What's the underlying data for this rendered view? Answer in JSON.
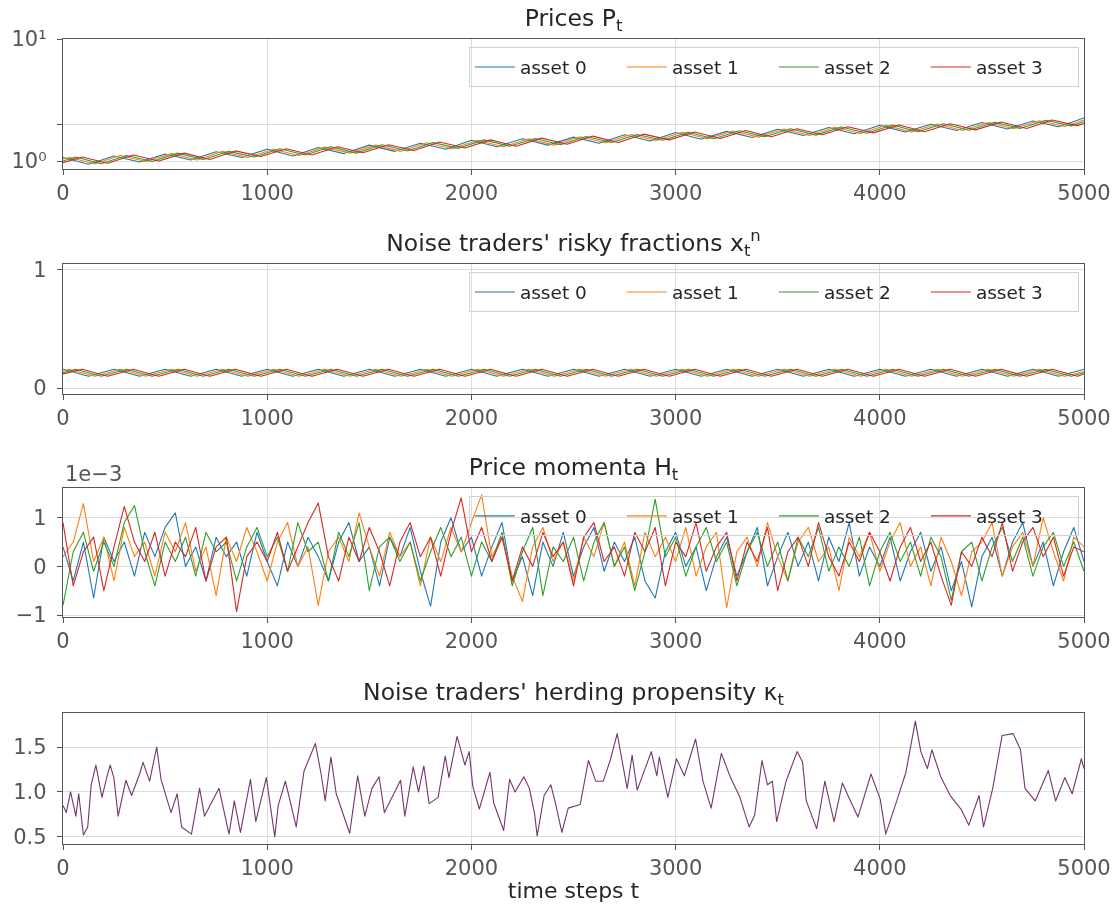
{
  "chart_data": [
    {
      "type": "line",
      "title": "Prices P$_{t}$",
      "x": [
        0,
        125,
        250,
        375,
        500,
        625,
        750,
        875,
        1000,
        1125,
        1250,
        1375,
        1500,
        1625,
        1750,
        1875,
        2000,
        2125,
        2250,
        2375,
        2500,
        2625,
        2750,
        2875,
        3000,
        3125,
        3250,
        3375,
        3500,
        3625,
        3750,
        3875,
        4000,
        4125,
        4250,
        4375,
        4500,
        4625,
        4750,
        4875,
        5000
      ],
      "xlim": [
        0,
        5000
      ],
      "xticks": [
        0,
        1000,
        2000,
        3000,
        4000,
        5000
      ],
      "ylim": [
        0.86,
        10
      ],
      "yticks": [
        {
          "value": 1,
          "label": "10⁰"
        },
        {
          "value": 2,
          "label": null
        },
        {
          "value": 10,
          "label": "10¹"
        }
      ],
      "log": "y",
      "grid": true,
      "legend": "top right",
      "series": [
        {
          "name": "asset 0",
          "color": "#1f77b4",
          "values": [
            1.07,
            0.94,
            1.1,
            0.98,
            1.14,
            1.02,
            1.19,
            1.07,
            1.25,
            1.1,
            1.29,
            1.15,
            1.35,
            1.2,
            1.4,
            1.25,
            1.48,
            1.31,
            1.52,
            1.35,
            1.57,
            1.4,
            1.64,
            1.46,
            1.71,
            1.51,
            1.75,
            1.56,
            1.82,
            1.62,
            1.88,
            1.67,
            1.96,
            1.73,
            2.0,
            1.78,
            2.07,
            1.83,
            2.13,
            1.91,
            2.25
          ]
        },
        {
          "name": "asset 1",
          "color": "#ff7f0e",
          "x": [
            0,
            31,
            156,
            281,
            406,
            531,
            656,
            781,
            906,
            1031,
            1156,
            1281,
            1406,
            1531,
            1656,
            1781,
            1906,
            2031,
            2156,
            2281,
            2406,
            2531,
            2656,
            2781,
            2906,
            3031,
            3156,
            3281,
            3406,
            3531,
            3656,
            3781,
            3906,
            4031,
            4156,
            4281,
            4406,
            4531,
            4656,
            4781,
            4906,
            5000
          ],
          "values": [
            1.04,
            1.07,
            0.95,
            1.11,
            0.99,
            1.15,
            1.02,
            1.2,
            1.07,
            1.25,
            1.11,
            1.3,
            1.16,
            1.35,
            1.2,
            1.41,
            1.26,
            1.48,
            1.31,
            1.52,
            1.35,
            1.58,
            1.41,
            1.65,
            1.47,
            1.72,
            1.52,
            1.76,
            1.57,
            1.83,
            1.62,
            1.89,
            1.68,
            1.96,
            1.73,
            2.01,
            1.78,
            2.07,
            1.84,
            2.14,
            1.92,
            2.17
          ]
        },
        {
          "name": "asset 2",
          "color": "#2ca02c",
          "x": [
            0,
            62,
            187,
            312,
            437,
            562,
            687,
            812,
            937,
            1062,
            1187,
            1312,
            1437,
            1562,
            1687,
            1812,
            1937,
            2062,
            2187,
            2312,
            2437,
            2562,
            2687,
            2812,
            2937,
            3062,
            3187,
            3312,
            3437,
            3562,
            3687,
            3812,
            3937,
            4062,
            4187,
            4312,
            4437,
            4562,
            4687,
            4812,
            4937,
            5000
          ],
          "values": [
            1.0,
            1.08,
            0.95,
            1.11,
            0.99,
            1.16,
            1.03,
            1.2,
            1.08,
            1.26,
            1.12,
            1.31,
            1.16,
            1.36,
            1.21,
            1.42,
            1.27,
            1.49,
            1.32,
            1.53,
            1.36,
            1.59,
            1.42,
            1.65,
            1.48,
            1.72,
            1.52,
            1.77,
            1.58,
            1.84,
            1.63,
            1.9,
            1.69,
            1.97,
            1.74,
            2.02,
            1.79,
            2.08,
            1.85,
            2.16,
            1.94,
            2.1
          ]
        },
        {
          "name": "asset 3",
          "color": "#d62728",
          "x": [
            0,
            94,
            219,
            344,
            469,
            594,
            719,
            844,
            969,
            1094,
            1219,
            1344,
            1469,
            1594,
            1719,
            1844,
            1969,
            2094,
            2219,
            2344,
            2469,
            2594,
            2719,
            2844,
            2969,
            3094,
            3219,
            3344,
            3469,
            3594,
            3719,
            3844,
            3969,
            4094,
            4219,
            4344,
            4469,
            4594,
            4719,
            4844,
            4969,
            5000
          ],
          "values": [
            0.97,
            1.08,
            0.96,
            1.12,
            1.0,
            1.16,
            1.03,
            1.21,
            1.09,
            1.26,
            1.12,
            1.31,
            1.17,
            1.36,
            1.22,
            1.43,
            1.28,
            1.49,
            1.32,
            1.54,
            1.37,
            1.6,
            1.42,
            1.66,
            1.49,
            1.73,
            1.53,
            1.78,
            1.58,
            1.84,
            1.64,
            1.91,
            1.7,
            1.97,
            1.74,
            2.02,
            1.8,
            2.09,
            1.85,
            2.17,
            1.95,
            2.03
          ]
        }
      ]
    },
    {
      "type": "line",
      "title": "Noise traders' risky fractions x$_{t}$$^{n}$",
      "x": [
        0,
        125,
        250,
        375,
        500,
        625,
        750,
        875,
        1000,
        1125,
        1250,
        1375,
        1500,
        1625,
        1750,
        1875,
        2000,
        2125,
        2250,
        2375,
        2500,
        2625,
        2750,
        2875,
        3000,
        3125,
        3250,
        3375,
        3500,
        3625,
        3750,
        3875,
        4000,
        4125,
        4250,
        4375,
        4500,
        4625,
        4750,
        4875,
        5000
      ],
      "xlim": [
        0,
        5000
      ],
      "xticks": [
        0,
        1000,
        2000,
        3000,
        4000,
        5000
      ],
      "ylim": [
        -0.05,
        1.05
      ],
      "yticks": [
        0,
        1
      ],
      "grid": true,
      "legend": "top right",
      "series": [
        {
          "name": "asset 0",
          "color": "#1f77b4",
          "values": [
            0.16,
            0.1,
            0.16,
            0.1,
            0.16,
            0.1,
            0.16,
            0.1,
            0.16,
            0.1,
            0.16,
            0.1,
            0.16,
            0.1,
            0.16,
            0.1,
            0.16,
            0.1,
            0.16,
            0.1,
            0.16,
            0.1,
            0.16,
            0.1,
            0.16,
            0.1,
            0.16,
            0.1,
            0.16,
            0.1,
            0.16,
            0.1,
            0.16,
            0.1,
            0.16,
            0.1,
            0.16,
            0.1,
            0.16,
            0.1,
            0.16
          ]
        },
        {
          "name": "asset 1",
          "color": "#ff7f0e",
          "x": [
            0,
            31,
            156,
            281,
            406,
            531,
            656,
            781,
            906,
            1031,
            1156,
            1281,
            1406,
            1531,
            1656,
            1781,
            1906,
            2031,
            2156,
            2281,
            2406,
            2531,
            2656,
            2781,
            2906,
            3031,
            3156,
            3281,
            3406,
            3531,
            3656,
            3781,
            3906,
            4031,
            4156,
            4281,
            4406,
            4531,
            4656,
            4781,
            4906,
            5000
          ],
          "values": [
            0.14,
            0.16,
            0.1,
            0.16,
            0.1,
            0.16,
            0.1,
            0.16,
            0.1,
            0.16,
            0.1,
            0.16,
            0.1,
            0.16,
            0.1,
            0.16,
            0.1,
            0.16,
            0.1,
            0.16,
            0.1,
            0.16,
            0.1,
            0.16,
            0.1,
            0.16,
            0.1,
            0.16,
            0.1,
            0.16,
            0.1,
            0.16,
            0.1,
            0.16,
            0.1,
            0.16,
            0.1,
            0.16,
            0.1,
            0.16,
            0.1,
            0.14
          ]
        },
        {
          "name": "asset 2",
          "color": "#2ca02c",
          "x": [
            0,
            62,
            187,
            312,
            437,
            562,
            687,
            812,
            937,
            1062,
            1187,
            1312,
            1437,
            1562,
            1687,
            1812,
            1937,
            2062,
            2187,
            2312,
            2437,
            2562,
            2687,
            2812,
            2937,
            3062,
            3187,
            3312,
            3437,
            3562,
            3687,
            3812,
            3937,
            4062,
            4187,
            4312,
            4437,
            4562,
            4687,
            4812,
            4937,
            5000
          ],
          "values": [
            0.13,
            0.16,
            0.1,
            0.16,
            0.1,
            0.16,
            0.1,
            0.16,
            0.1,
            0.16,
            0.1,
            0.16,
            0.1,
            0.16,
            0.1,
            0.16,
            0.1,
            0.16,
            0.1,
            0.16,
            0.1,
            0.16,
            0.1,
            0.16,
            0.1,
            0.16,
            0.1,
            0.16,
            0.1,
            0.16,
            0.1,
            0.16,
            0.1,
            0.16,
            0.1,
            0.16,
            0.1,
            0.16,
            0.1,
            0.16,
            0.1,
            0.13
          ]
        },
        {
          "name": "asset 3",
          "color": "#d62728",
          "x": [
            0,
            94,
            219,
            344,
            469,
            594,
            719,
            844,
            969,
            1094,
            1219,
            1344,
            1469,
            1594,
            1719,
            1844,
            1969,
            2094,
            2219,
            2344,
            2469,
            2594,
            2719,
            2844,
            2969,
            3094,
            3219,
            3344,
            3469,
            3594,
            3719,
            3844,
            3969,
            4094,
            4219,
            4344,
            4469,
            4594,
            4719,
            4844,
            4969,
            5000
          ],
          "values": [
            0.12,
            0.16,
            0.1,
            0.16,
            0.1,
            0.16,
            0.1,
            0.16,
            0.1,
            0.16,
            0.1,
            0.16,
            0.1,
            0.16,
            0.1,
            0.16,
            0.1,
            0.16,
            0.1,
            0.16,
            0.1,
            0.16,
            0.1,
            0.16,
            0.1,
            0.16,
            0.1,
            0.16,
            0.1,
            0.16,
            0.1,
            0.16,
            0.1,
            0.16,
            0.1,
            0.16,
            0.1,
            0.16,
            0.1,
            0.16,
            0.1,
            0.12
          ]
        }
      ]
    },
    {
      "type": "line",
      "title": "Price momenta H$_{t}$",
      "annotations": [
        "1e−3"
      ],
      "x": [
        0,
        50,
        100,
        150,
        200,
        250,
        300,
        350,
        400,
        450,
        500,
        550,
        600,
        650,
        700,
        750,
        800,
        850,
        900,
        950,
        1000,
        1050,
        1100,
        1150,
        1200,
        1250,
        1300,
        1350,
        1400,
        1450,
        1500,
        1550,
        1600,
        1650,
        1700,
        1750,
        1800,
        1850,
        1900,
        1950,
        2000,
        2050,
        2100,
        2150,
        2200,
        2250,
        2300,
        2350,
        2400,
        2450,
        2500,
        2550,
        2600,
        2650,
        2700,
        2750,
        2800,
        2850,
        2900,
        2950,
        3000,
        3050,
        3100,
        3150,
        3200,
        3250,
        3300,
        3350,
        3400,
        3450,
        3500,
        3550,
        3600,
        3650,
        3700,
        3750,
        3800,
        3850,
        3900,
        3950,
        4000,
        4050,
        4100,
        4150,
        4200,
        4250,
        4300,
        4350,
        4400,
        4450,
        4500,
        4550,
        4600,
        4650,
        4700,
        4750,
        4800,
        4850,
        4900,
        4950,
        5000
      ],
      "xlim": [
        0,
        5000
      ],
      "xticks": [
        0,
        1000,
        2000,
        3000,
        4000,
        5000
      ],
      "ylim": [
        -1.04,
        1.61
      ],
      "yticks": [
        {
          "value": -1,
          "label": "−1"
        },
        0,
        1
      ],
      "grid": true,
      "legend": "top right",
      "series": [
        {
          "name": "asset 0",
          "color": "#1f77b4",
          "values": [
            0.4,
            -0.3,
            0.5,
            -0.65,
            0.6,
            0.1,
            0.5,
            -0.2,
            0.7,
            0.2,
            0.8,
            1.1,
            0.0,
            0.4,
            -0.3,
            0.6,
            0.2,
            0.5,
            -0.2,
            0.7,
            0.1,
            -0.4,
            0.5,
            0.0,
            0.6,
            0.2,
            -0.3,
            0.5,
            0.9,
            0.1,
            0.4,
            -0.4,
            0.6,
            0.2,
            0.8,
            -0.1,
            -0.82,
            0.5,
            1.0,
            0.3,
            0.6,
            -0.2,
            0.4,
            0.9,
            -0.3,
            0.2,
            -0.6,
            0.5,
            0.0,
            0.7,
            -0.2,
            0.4,
            0.8,
            -0.1,
            0.5,
            0.1,
            0.6,
            -0.3,
            -0.65,
            0.3,
            0.7,
            0.0,
            0.4,
            -0.5,
            0.2,
            0.6,
            -0.2,
            0.3,
            0.8,
            -0.4,
            0.2,
            0.7,
            0.0,
            0.5,
            -0.3,
            0.6,
            0.1,
            0.9,
            -0.2,
            0.4,
            0.0,
            0.6,
            -0.3,
            0.3,
            0.7,
            -0.1,
            0.4,
            -0.5,
            0.1,
            -0.83,
            0.2,
            0.6,
            -0.2,
            0.5,
            0.9,
            0.0,
            0.5,
            -0.4,
            0.3,
            0.8,
            0.1
          ]
        },
        {
          "name": "asset 1",
          "color": "#ff7f0e",
          "values": [
            0.2,
            0.5,
            1.29,
            0.1,
            0.6,
            -0.3,
            0.8,
            0.2,
            0.5,
            -0.2,
            0.7,
            0.3,
            0.9,
            -0.1,
            0.4,
            -0.6,
            0.6,
            0.1,
            0.8,
            0.3,
            -0.3,
            0.5,
            0.9,
            0.0,
            0.4,
            -0.8,
            0.3,
            0.6,
            0.1,
            1.1,
            0.4,
            -0.2,
            0.7,
            0.2,
            0.5,
            -0.4,
            0.6,
            0.1,
            0.8,
            0.3,
            0.9,
            1.47,
            0.2,
            0.6,
            -0.2,
            -0.72,
            0.4,
            0.8,
            0.1,
            0.5,
            -0.3,
            0.6,
            0.2,
            0.9,
            0.0,
            0.5,
            -0.4,
            0.7,
            0.2,
            0.6,
            0.1,
            0.8,
            -0.2,
            0.4,
            0.7,
            -0.85,
            0.3,
            0.6,
            0.0,
            0.9,
            0.2,
            -0.3,
            0.5,
            0.8,
            0.1,
            0.4,
            -0.5,
            0.6,
            0.2,
            0.7,
            -0.1,
            0.5,
            0.9,
            0.0,
            0.4,
            -0.4,
            0.6,
            0.1,
            -0.6,
            0.3,
            0.5,
            0.9,
            -0.2,
            0.4,
            0.7,
            0.0,
            1.0,
            0.3,
            -0.3,
            0.6,
            0.4
          ]
        },
        {
          "name": "asset 2",
          "color": "#2ca02c",
          "values": [
            -0.8,
            0.3,
            0.7,
            -0.1,
            0.5,
            0.0,
            0.9,
            1.25,
            0.3,
            -0.4,
            0.5,
            0.1,
            0.6,
            -0.2,
            0.7,
            0.3,
            0.5,
            -0.3,
            0.4,
            0.8,
            0.2,
            0.6,
            -0.1,
            0.9,
            0.3,
            0.5,
            -0.3,
            0.7,
            0.2,
            0.9,
            -0.5,
            0.4,
            0.6,
            0.1,
            0.5,
            -0.3,
            0.3,
            0.8,
            0.2,
            0.6,
            -0.2,
            0.5,
            0.1,
            0.7,
            -0.4,
            0.3,
            0.8,
            -0.6,
            0.4,
            0.1,
            0.6,
            -0.3,
            0.5,
            0.9,
            0.0,
            0.4,
            -0.5,
            0.3,
            1.38,
            0.2,
            0.6,
            -0.2,
            0.4,
            0.8,
            0.1,
            0.5,
            -0.4,
            0.3,
            0.7,
            0.0,
            0.5,
            -0.3,
            0.6,
            0.2,
            0.8,
            -0.1,
            0.4,
            0.0,
            0.6,
            -0.4,
            0.3,
            0.7,
            0.1,
            0.5,
            -0.2,
            0.6,
            0.2,
            -0.7,
            0.3,
            0.5,
            -0.3,
            0.4,
            0.8,
            0.1,
            0.6,
            -0.2,
            0.4,
            0.7,
            0.0,
            0.5,
            -0.1
          ]
        },
        {
          "name": "asset 3",
          "color": "#d62728",
          "values": [
            0.9,
            -0.4,
            0.3,
            0.6,
            -0.5,
            0.4,
            1.23,
            0.5,
            0.1,
            0.7,
            -0.2,
            0.5,
            0.2,
            0.8,
            -0.3,
            0.4,
            0.6,
            -0.93,
            0.2,
            0.5,
            0.1,
            0.7,
            -0.1,
            0.4,
            0.9,
            1.3,
            0.2,
            -0.3,
            0.6,
            0.1,
            0.8,
            0.3,
            -0.4,
            0.5,
            0.9,
            0.2,
            0.6,
            -0.2,
            0.7,
            1.41,
            0.3,
            0.8,
            0.1,
            0.6,
            -0.3,
            0.4,
            0.0,
            0.7,
            0.2,
            0.5,
            -0.4,
            0.6,
            0.9,
            0.1,
            0.4,
            -0.2,
            0.7,
            0.3,
            0.8,
            -0.4,
            0.5,
            0.2,
            0.9,
            -0.1,
            0.4,
            0.7,
            -0.3,
            0.5,
            0.1,
            0.8,
            -0.5,
            0.3,
            0.6,
            0.0,
            0.9,
            0.2,
            -0.2,
            0.5,
            0.1,
            0.7,
            0.3,
            -0.3,
            0.4,
            0.8,
            0.1,
            0.5,
            -0.2,
            -0.8,
            0.3,
            0.0,
            0.6,
            0.2,
            0.9,
            -0.1,
            0.5,
            0.8,
            0.2,
            0.6,
            -0.2,
            0.4,
            0.3
          ]
        }
      ]
    },
    {
      "type": "line",
      "title": "Noise traders' herding propensity κ$_{t}$",
      "xlabel": "time steps t",
      "xlim": [
        0,
        5000
      ],
      "xticks": [
        0,
        1000,
        2000,
        3000,
        4000,
        5000
      ],
      "ylim": [
        0.42,
        1.88
      ],
      "yticks": [
        0.5,
        {
          "value": 1,
          "label": "1.0"
        },
        1.5
      ],
      "grid": true,
      "x": [
        0,
        16,
        37,
        63,
        77,
        100,
        121,
        138,
        161,
        191,
        214,
        231,
        249,
        270,
        308,
        336,
        375,
        392,
        424,
        459,
        480,
        529,
        559,
        581,
        629,
        669,
        693,
        725,
        764,
        813,
        839,
        869,
        918,
        944,
        996,
        1037,
        1054,
        1089,
        1142,
        1180,
        1236,
        1264,
        1284,
        1312,
        1338,
        1404,
        1443,
        1478,
        1513,
        1548,
        1574,
        1653,
        1674,
        1715,
        1741,
        1767,
        1793,
        1837,
        1872,
        1890,
        1930,
        1968,
        1989,
        2007,
        2039,
        2091,
        2109,
        2158,
        2187,
        2214,
        2257,
        2284,
        2310,
        2322,
        2356,
        2389,
        2411,
        2443,
        2474,
        2533,
        2573,
        2609,
        2646,
        2682,
        2714,
        2745,
        2763,
        2787,
        2812,
        2881,
        2908,
        2920,
        2962,
        3004,
        3043,
        3098,
        3134,
        3174,
        3224,
        3269,
        3315,
        3360,
        3387,
        3423,
        3450,
        3474,
        3495,
        3541,
        3595,
        3622,
        3640,
        3691,
        3731,
        3776,
        3817,
        3848,
        3893,
        3957,
        4002,
        4029,
        4083,
        4128,
        4174,
        4201,
        4233,
        4255,
        4300,
        4345,
        4400,
        4436,
        4486,
        4508,
        4553,
        4599,
        4653,
        4689,
        4711,
        4761,
        4825,
        4861,
        4906,
        4942,
        4987,
        5000
      ],
      "series": [
        {
          "color": "#74366f",
          "values": [
            0.85,
            0.77,
            1.0,
            0.73,
            0.98,
            0.52,
            0.61,
            1.08,
            1.3,
            0.94,
            1.16,
            1.3,
            1.16,
            0.73,
            1.13,
            0.96,
            1.2,
            1.33,
            1.12,
            1.5,
            1.14,
            0.77,
            0.98,
            0.61,
            0.53,
            1.04,
            0.73,
            0.87,
            1.04,
            0.53,
            0.9,
            0.55,
            1.14,
            0.67,
            1.16,
            0.5,
            0.85,
            1.12,
            0.61,
            1.23,
            1.54,
            1.2,
            0.9,
            1.39,
            0.98,
            0.54,
            1.18,
            0.73,
            1.04,
            1.17,
            0.77,
            1.13,
            0.73,
            1.28,
            1.0,
            1.29,
            0.87,
            0.94,
            1.4,
            1.16,
            1.62,
            1.3,
            1.45,
            1.06,
            0.81,
            1.22,
            0.88,
            0.57,
            1.14,
            1.0,
            1.17,
            1.04,
            0.75,
            0.51,
            0.96,
            1.08,
            0.88,
            0.55,
            0.82,
            0.86,
            1.35,
            1.12,
            1.12,
            1.37,
            1.65,
            1.26,
            1.04,
            1.41,
            1.02,
            1.45,
            1.18,
            1.39,
            0.94,
            1.37,
            1.18,
            1.59,
            1.12,
            0.82,
            1.43,
            1.16,
            0.94,
            0.61,
            0.74,
            1.35,
            1.08,
            1.12,
            0.67,
            1.12,
            1.45,
            1.33,
            0.9,
            0.59,
            1.12,
            0.67,
            1.1,
            0.94,
            0.72,
            1.2,
            0.92,
            0.53,
            0.9,
            1.22,
            1.79,
            1.45,
            1.26,
            1.47,
            1.16,
            0.96,
            0.8,
            0.63,
            0.96,
            0.61,
            1.04,
            1.63,
            1.65,
            1.47,
            1.04,
            0.9,
            1.24,
            0.9,
            1.16,
            0.98,
            1.37,
            1.26
          ]
        }
      ]
    }
  ]
}
